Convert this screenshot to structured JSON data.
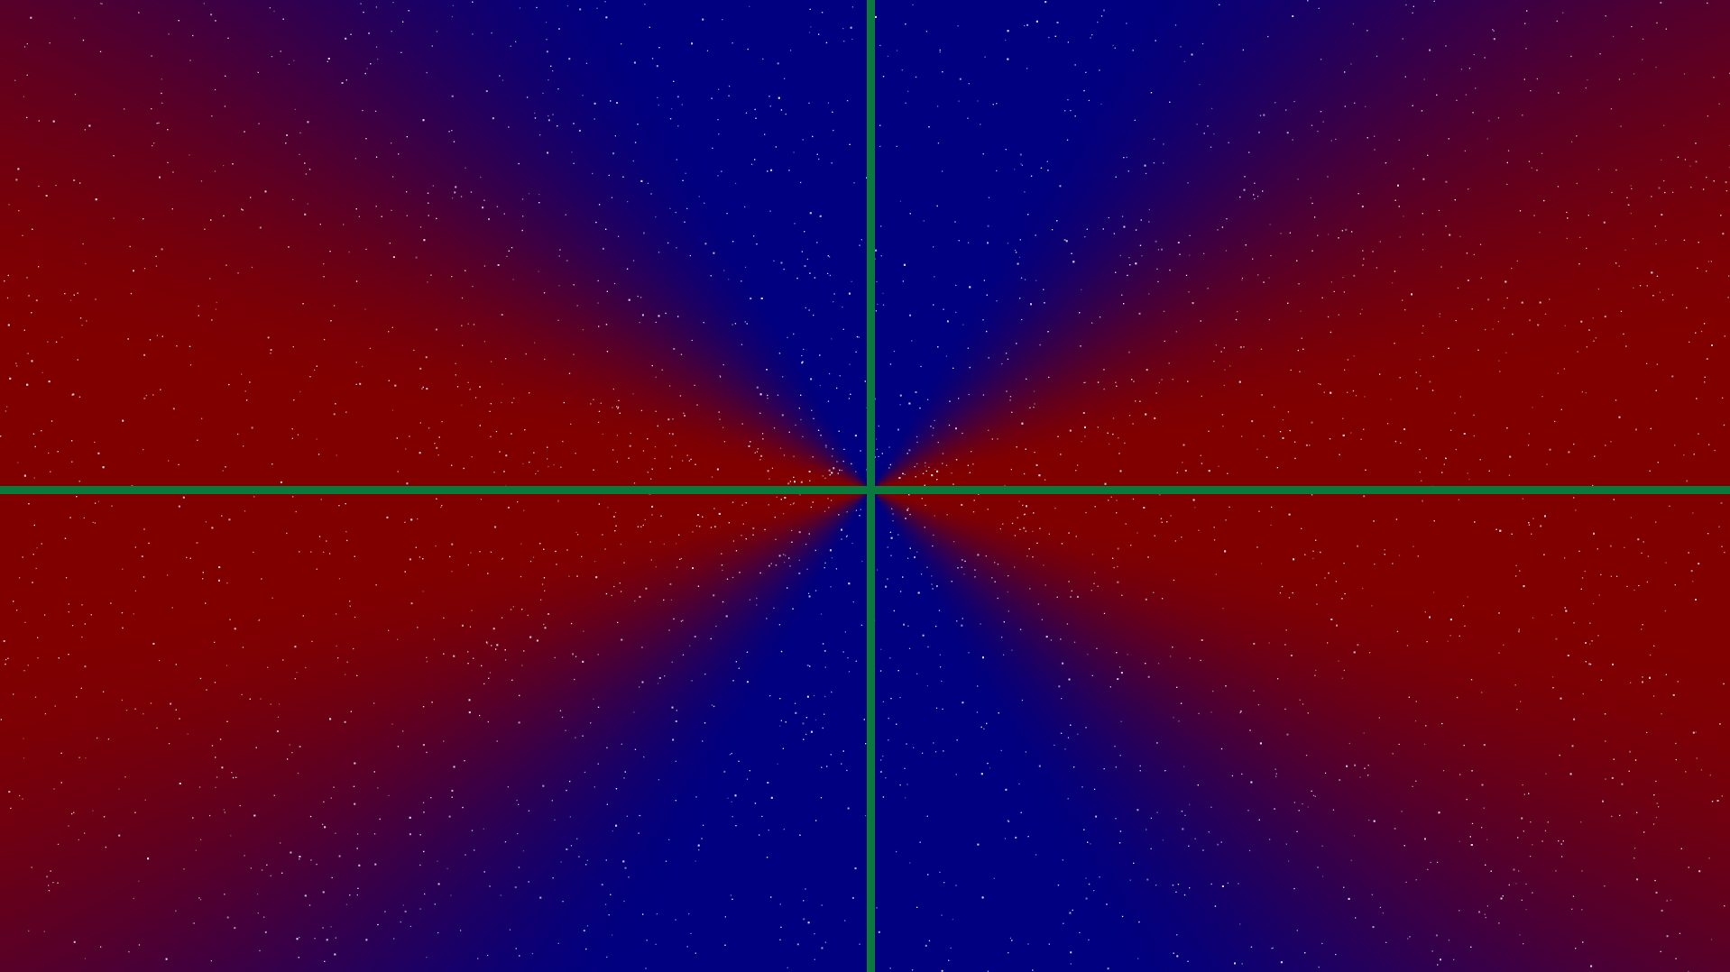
{
  "scene": {
    "description_name": "radial-starfield",
    "colors": {
      "horizontal_sector": "#800000",
      "vertical_sector": "#000080",
      "axis_lines": "#0a7a3c",
      "stars": "#d8d8e8"
    },
    "star_count": 5200
  }
}
